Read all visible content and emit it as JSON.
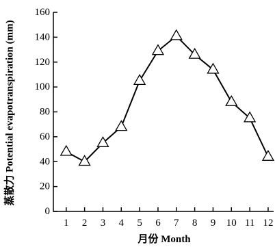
{
  "chart_data": {
    "type": "line",
    "xlabel": "月份 Month",
    "ylabel": "蒸散力 Potential evapotranspiration (mm)",
    "x": [
      1,
      2,
      3,
      4,
      5,
      6,
      7,
      8,
      9,
      10,
      11,
      12
    ],
    "xticks": [
      "1",
      "2",
      "3",
      "4",
      "5",
      "6",
      "7",
      "8",
      "9",
      "10",
      "11",
      "12"
    ],
    "yticks": [
      "0",
      "20",
      "40",
      "60",
      "80",
      "100",
      "120",
      "140",
      "160"
    ],
    "xlim": [
      0.3,
      12.3
    ],
    "ylim": [
      0,
      160
    ],
    "grid": false,
    "series": [
      {
        "marker": "open-triangle",
        "values": [
          48,
          40,
          55,
          68,
          105,
          129,
          141,
          126,
          114,
          88,
          75,
          44
        ]
      }
    ]
  }
}
